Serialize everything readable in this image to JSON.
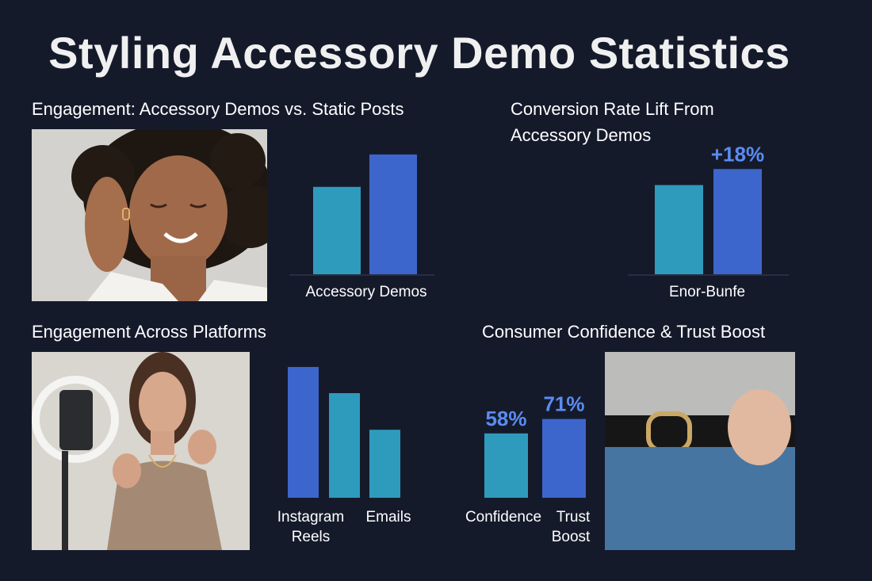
{
  "title": "Styling Accessory Demo Statistics",
  "colors": {
    "background": "#151a2b",
    "teal": "#2e9bbd",
    "blue": "#3d66cc",
    "label_blue": "#5a8cf0"
  },
  "panels": {
    "engagement_demos": {
      "title": "Engagement: Accessory Demos vs. Static Posts",
      "photo_icon": "woman-with-earring-photo"
    },
    "conversion": {
      "title_line1": "Conversion Rate Lift From",
      "title_line2": "Accessory Demos"
    },
    "platforms": {
      "title": "Engagement Across Platforms",
      "photo_icon": "woman-with-ring-light-photo"
    },
    "confidence": {
      "title": "Consumer Confidence & Trust Boost",
      "photo_icon": "belt-and-jeans-photo"
    }
  },
  "chart_data": [
    {
      "type": "bar",
      "categories": [
        "Accessory Demos",
        ""
      ],
      "series": [
        {
          "values": [
            62,
            85
          ]
        }
      ],
      "xlabel": "Accessory Demos",
      "ylim": [
        0,
        90
      ]
    },
    {
      "type": "bar",
      "categories": [
        "Enor-Bunfe",
        ""
      ],
      "series": [
        {
          "values": [
            100,
            118
          ]
        }
      ],
      "xlabel": "Enor-Bunfe",
      "data_labels": [
        "",
        "+18%"
      ],
      "ylim": [
        0,
        120
      ]
    },
    {
      "type": "bar",
      "categories": [
        "Instagram Reels",
        "",
        "Emails"
      ],
      "series": [
        {
          "values": [
            100,
            80,
            52
          ]
        }
      ],
      "ylim": [
        0,
        100
      ]
    },
    {
      "type": "bar",
      "categories": [
        "Confidence",
        "Trust Boost"
      ],
      "series": [
        {
          "values": [
            58,
            71
          ]
        }
      ],
      "data_labels": [
        "58%",
        "71%"
      ],
      "ylim": [
        0,
        100
      ]
    }
  ]
}
